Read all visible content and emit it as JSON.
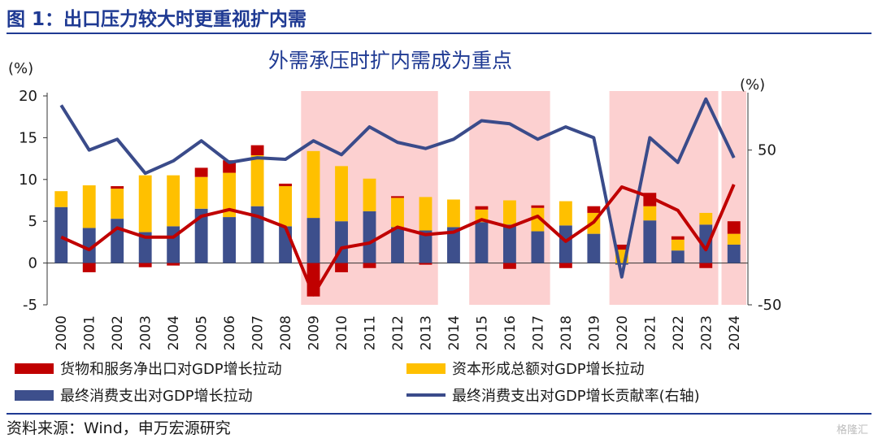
{
  "figure_title": "图 1：出口压力较大时更重视扩内需",
  "source": "资料来源：Wind，申万宏源研究",
  "watermark": "格隆汇",
  "colors": {
    "net_exports": "#c00000",
    "capital": "#ffc000",
    "consumption": "#3d4f8c",
    "contribution_line": "#3a4b8a",
    "net_exports_line": "#c00000",
    "shade": "#fcd0d0",
    "title_blue": "#1f3a93"
  },
  "chart_data": {
    "type": "bar",
    "title": "外需承压时扩内需成为重点",
    "ylabel_left": "(%)",
    "ylabel_right": "(%)",
    "ylim_left": [
      -5,
      20
    ],
    "ylim_right": [
      -50,
      85
    ],
    "yticks_left": [
      "-5",
      "0",
      "5",
      "10",
      "15",
      "20"
    ],
    "yticks_right": [
      "-50",
      "50"
    ],
    "categories": [
      "2000",
      "2001",
      "2002",
      "2003",
      "2004",
      "2005",
      "2006",
      "2007",
      "2008",
      "2009",
      "2010",
      "2011",
      "2012",
      "2013",
      "2014",
      "2015",
      "2016",
      "2017",
      "2018",
      "2019",
      "2020",
      "2021",
      "2022",
      "2023",
      "2024"
    ],
    "shaded_periods": [
      [
        "2009",
        "2013"
      ],
      [
        "2015",
        "2017"
      ],
      [
        "2020",
        "2023"
      ],
      [
        "2024",
        "2024"
      ]
    ],
    "legend_position": "bottom",
    "series": [
      {
        "name": "货物和服务净出口对GDP增长拉动",
        "type": "bar-stack",
        "values": [
          0.0,
          -1.1,
          0.3,
          -0.5,
          -0.3,
          1.1,
          1.5,
          1.2,
          0.3,
          -4.0,
          -1.1,
          -0.6,
          0.2,
          -0.2,
          0.0,
          0.4,
          -0.7,
          0.3,
          -0.6,
          0.8,
          0.6,
          1.6,
          0.4,
          -0.6,
          1.5
        ]
      },
      {
        "name": "资本形成总额对GDP增长拉动",
        "type": "bar-stack",
        "values": [
          1.9,
          5.1,
          3.6,
          6.8,
          6.1,
          3.8,
          5.3,
          6.1,
          4.8,
          8.0,
          6.6,
          3.9,
          3.5,
          4.0,
          3.3,
          1.5,
          2.9,
          2.8,
          2.9,
          2.5,
          1.6,
          1.7,
          1.3,
          1.4,
          1.3
        ]
      },
      {
        "name": "最终消费支出对GDP增长拉动",
        "type": "bar-stack",
        "values": [
          6.7,
          4.2,
          5.3,
          3.7,
          4.4,
          6.5,
          5.5,
          6.8,
          4.4,
          5.4,
          5.0,
          6.2,
          4.3,
          3.9,
          4.3,
          4.9,
          4.6,
          3.8,
          4.5,
          3.5,
          -0.2,
          5.1,
          1.5,
          4.6,
          2.2
        ]
      },
      {
        "name": "最终消费支出对GDP增长贡献率(右轴)",
        "type": "line",
        "axis": "right",
        "values": [
          79,
          50,
          57,
          35,
          43,
          56,
          42,
          45,
          44,
          56,
          47,
          65,
          55,
          51,
          57,
          69,
          67,
          57,
          65,
          58,
          -32,
          58,
          42,
          83,
          45
        ]
      },
      {
        "name": "net_exports_line",
        "type": "line",
        "axis": "left",
        "values": [
          3.1,
          1.6,
          4.2,
          3.1,
          3.1,
          5.6,
          6.4,
          5.6,
          4.3,
          -3.8,
          1.8,
          2.4,
          4.3,
          3.4,
          3.7,
          5.2,
          4.3,
          5.6,
          2.6,
          4.9,
          9.1,
          7.9,
          6.3,
          1.6,
          9.4
        ]
      }
    ]
  }
}
